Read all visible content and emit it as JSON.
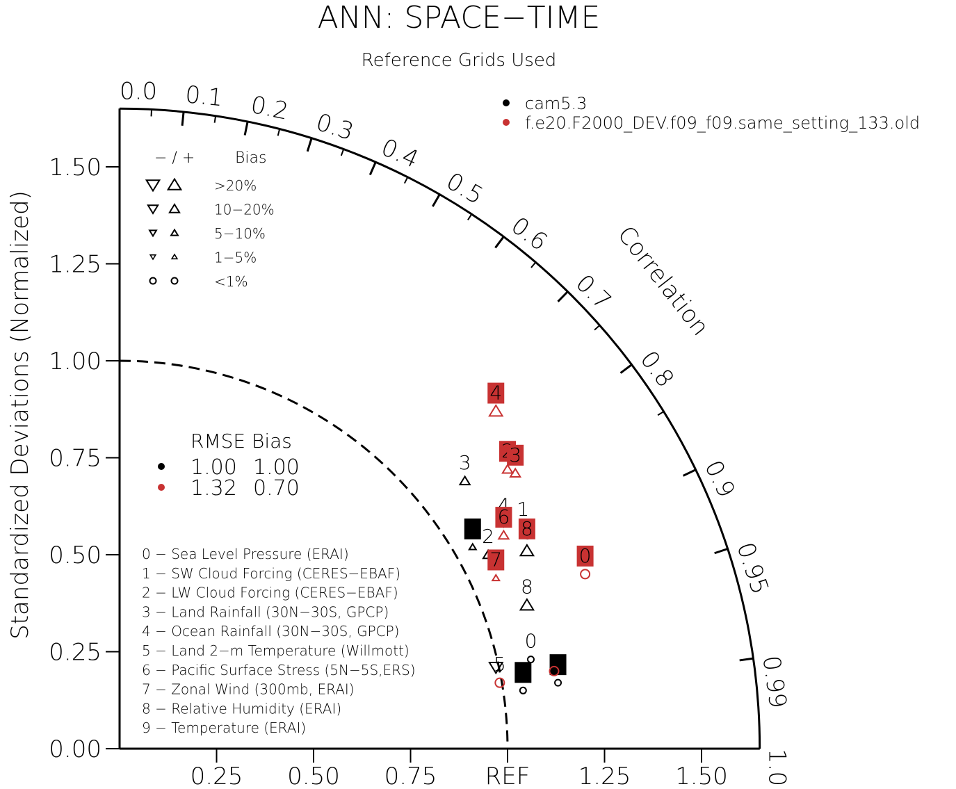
{
  "chart_data": {
    "type": "taylor",
    "title": "ANN: SPACE−TIME",
    "subtitle": "Reference Grids Used",
    "ylabel": "Standardized Deviations (Normalized)",
    "corr_label": "Correlation",
    "ref_label": "REF",
    "ylim": [
      0,
      1.65
    ],
    "y_ticks": [
      {
        "v": 0.0,
        "label": "0.00"
      },
      {
        "v": 0.25,
        "label": "0.25"
      },
      {
        "v": 0.5,
        "label": "0.50"
      },
      {
        "v": 0.75,
        "label": "0.75"
      },
      {
        "v": 1.0,
        "label": "1.00"
      },
      {
        "v": 1.25,
        "label": "1.25"
      },
      {
        "v": 1.5,
        "label": "1.50"
      }
    ],
    "x_ticks": [
      {
        "v": 0.25,
        "label": "0.25"
      },
      {
        "v": 0.5,
        "label": "0.50"
      },
      {
        "v": 0.75,
        "label": "0.75"
      },
      {
        "v": 1.0,
        "label": "REF"
      },
      {
        "v": 1.25,
        "label": "1.25"
      },
      {
        "v": 1.5,
        "label": "1.50"
      }
    ],
    "corr_ticks_labeled": [
      {
        "v": 0.0,
        "label": "0.0"
      },
      {
        "v": 0.1,
        "label": "0.1"
      },
      {
        "v": 0.2,
        "label": "0.2"
      },
      {
        "v": 0.3,
        "label": "0.3"
      },
      {
        "v": 0.4,
        "label": "0.4"
      },
      {
        "v": 0.5,
        "label": "0.5"
      },
      {
        "v": 0.6,
        "label": "0.6"
      },
      {
        "v": 0.7,
        "label": "0.7"
      },
      {
        "v": 0.8,
        "label": "0.8"
      },
      {
        "v": 0.9,
        "label": "0.9"
      },
      {
        "v": 0.95,
        "label": "0.95"
      },
      {
        "v": 0.99,
        "label": "0.99"
      },
      {
        "v": 1.0,
        "label": "1.0"
      }
    ],
    "corr_ticks_minor": [
      0.05,
      0.15,
      0.25,
      0.35,
      0.45,
      0.55,
      0.65,
      0.75,
      0.85
    ],
    "series": [
      {
        "name": "cam5.3",
        "color": "#000000",
        "rmse": "1.00",
        "bias": "1.00",
        "points": [
          {
            "id": "0",
            "x": 1.06,
            "y": 0.23,
            "marker": "circle-small",
            "label": "0",
            "boxed": false
          },
          {
            "id": "1",
            "x": 0.91,
            "y": 0.52,
            "marker": "up-small",
            "label": "1",
            "boxed": true
          },
          {
            "id": "2",
            "x": 0.95,
            "y": 0.5,
            "marker": "up-medium",
            "label": "2",
            "boxed": false
          },
          {
            "id": "3",
            "x": 0.89,
            "y": 0.69,
            "marker": "up-medium",
            "label": "3",
            "boxed": false
          },
          {
            "id": "4",
            "x": 0.99,
            "y": 0.58,
            "marker": "down-small",
            "label": "4",
            "boxed": false
          },
          {
            "id": "5",
            "x": 1.04,
            "y": 0.15,
            "marker": "circle-small",
            "label": "5",
            "boxed": true
          },
          {
            "id": "6",
            "x": 1.05,
            "y": 0.51,
            "marker": "up-large",
            "label": "6",
            "boxed": false
          },
          {
            "id": "7",
            "x": 0.97,
            "y": 0.21,
            "marker": "down-large",
            "label": "",
            "boxed": false
          },
          {
            "id": "8",
            "x": 1.05,
            "y": 0.37,
            "marker": "up-large",
            "label": "8",
            "boxed": false
          },
          {
            "id": "9",
            "x": 1.13,
            "y": 0.17,
            "marker": "circle-small",
            "label": "9",
            "boxed": true
          }
        ]
      },
      {
        "name": "f.e20.F2000_DEV.f09_f09.same_setting_133.old",
        "color": "#c83232",
        "rmse": "1.32",
        "bias": "0.70",
        "points": [
          {
            "id": "0",
            "x": 1.2,
            "y": 0.45,
            "marker": "circle-medium",
            "label": "0",
            "boxed": true
          },
          {
            "id": "1",
            "x": 1.04,
            "y": 0.57,
            "marker": "none",
            "label": "1",
            "boxed": false
          },
          {
            "id": "2",
            "x": 1.0,
            "y": 0.72,
            "marker": "up-medium",
            "label": "2",
            "boxed": true
          },
          {
            "id": "3",
            "x": 1.02,
            "y": 0.71,
            "marker": "up-medium",
            "label": "3",
            "boxed": true
          },
          {
            "id": "4",
            "x": 0.97,
            "y": 0.87,
            "marker": "up-large",
            "label": "4",
            "boxed": true
          },
          {
            "id": "5",
            "x": 0.98,
            "y": 0.17,
            "marker": "circle-medium",
            "label": "5",
            "boxed": false
          },
          {
            "id": "6",
            "x": 0.99,
            "y": 0.55,
            "marker": "up-medium",
            "label": "6",
            "boxed": true
          },
          {
            "id": "7",
            "x": 0.97,
            "y": 0.44,
            "marker": "up-small",
            "label": "7",
            "boxed": true
          },
          {
            "id": "8",
            "x": 1.05,
            "y": 0.52,
            "marker": "none",
            "label": "8",
            "boxed": true
          },
          {
            "id": "9",
            "x": 1.12,
            "y": 0.2,
            "marker": "circle-medium",
            "label": "",
            "boxed": false
          }
        ]
      }
    ],
    "bias_legend": {
      "header_signs": "− / +",
      "header_label": "Bias",
      "rows": [
        ">20%",
        "10−20%",
        "5−10%",
        "1−5%",
        "<1%"
      ]
    },
    "rmse_bias_header": "RMSE Bias",
    "variables": [
      "0 − Sea Level Pressure (ERAI)",
      "1 − SW Cloud Forcing (CERES−EBAF)",
      "2 − LW Cloud Forcing (CERES−EBAF)",
      "3 − Land Rainfall (30N−30S, GPCP)",
      "4 − Ocean Rainfall (30N−30S, GPCP)",
      "5 − Land 2−m Temperature (Willmott)",
      "6 − Pacific Surface Stress (5N−5S,ERS)",
      "7 − Zonal Wind (300mb, ERAI)",
      "8 − Relative Humidity (ERAI)",
      "9 − Temperature (ERAI)"
    ]
  }
}
